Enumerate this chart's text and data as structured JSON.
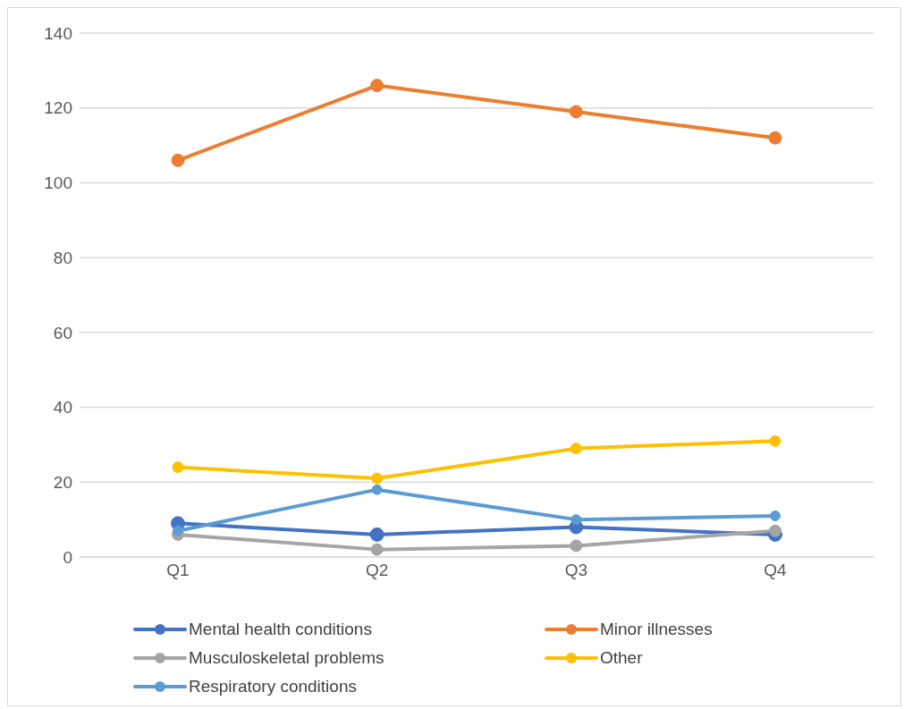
{
  "chart_data": {
    "type": "line",
    "categories": [
      "Q1",
      "Q2",
      "Q3",
      "Q4"
    ],
    "series": [
      {
        "name": "Mental health conditions",
        "color": "#4472c4",
        "values": [
          9,
          6,
          8,
          6
        ]
      },
      {
        "name": "Minor illnesses",
        "color": "#ed7d31",
        "values": [
          106,
          126,
          119,
          112
        ]
      },
      {
        "name": "Musculoskeletal problems",
        "color": "#a5a5a5",
        "values": [
          6,
          2,
          3,
          7
        ]
      },
      {
        "name": "Other",
        "color": "#ffc000",
        "values": [
          24,
          21,
          29,
          31
        ]
      },
      {
        "name": "Respiratory conditions",
        "color": "#5b9bd5",
        "values": [
          7,
          18,
          10,
          11
        ]
      }
    ],
    "ylim": [
      0,
      140
    ],
    "yticks": [
      0,
      20,
      40,
      60,
      80,
      100,
      120,
      140
    ],
    "grid": "y",
    "legend": "bottom",
    "marker": "circle",
    "line_style": "solid"
  }
}
